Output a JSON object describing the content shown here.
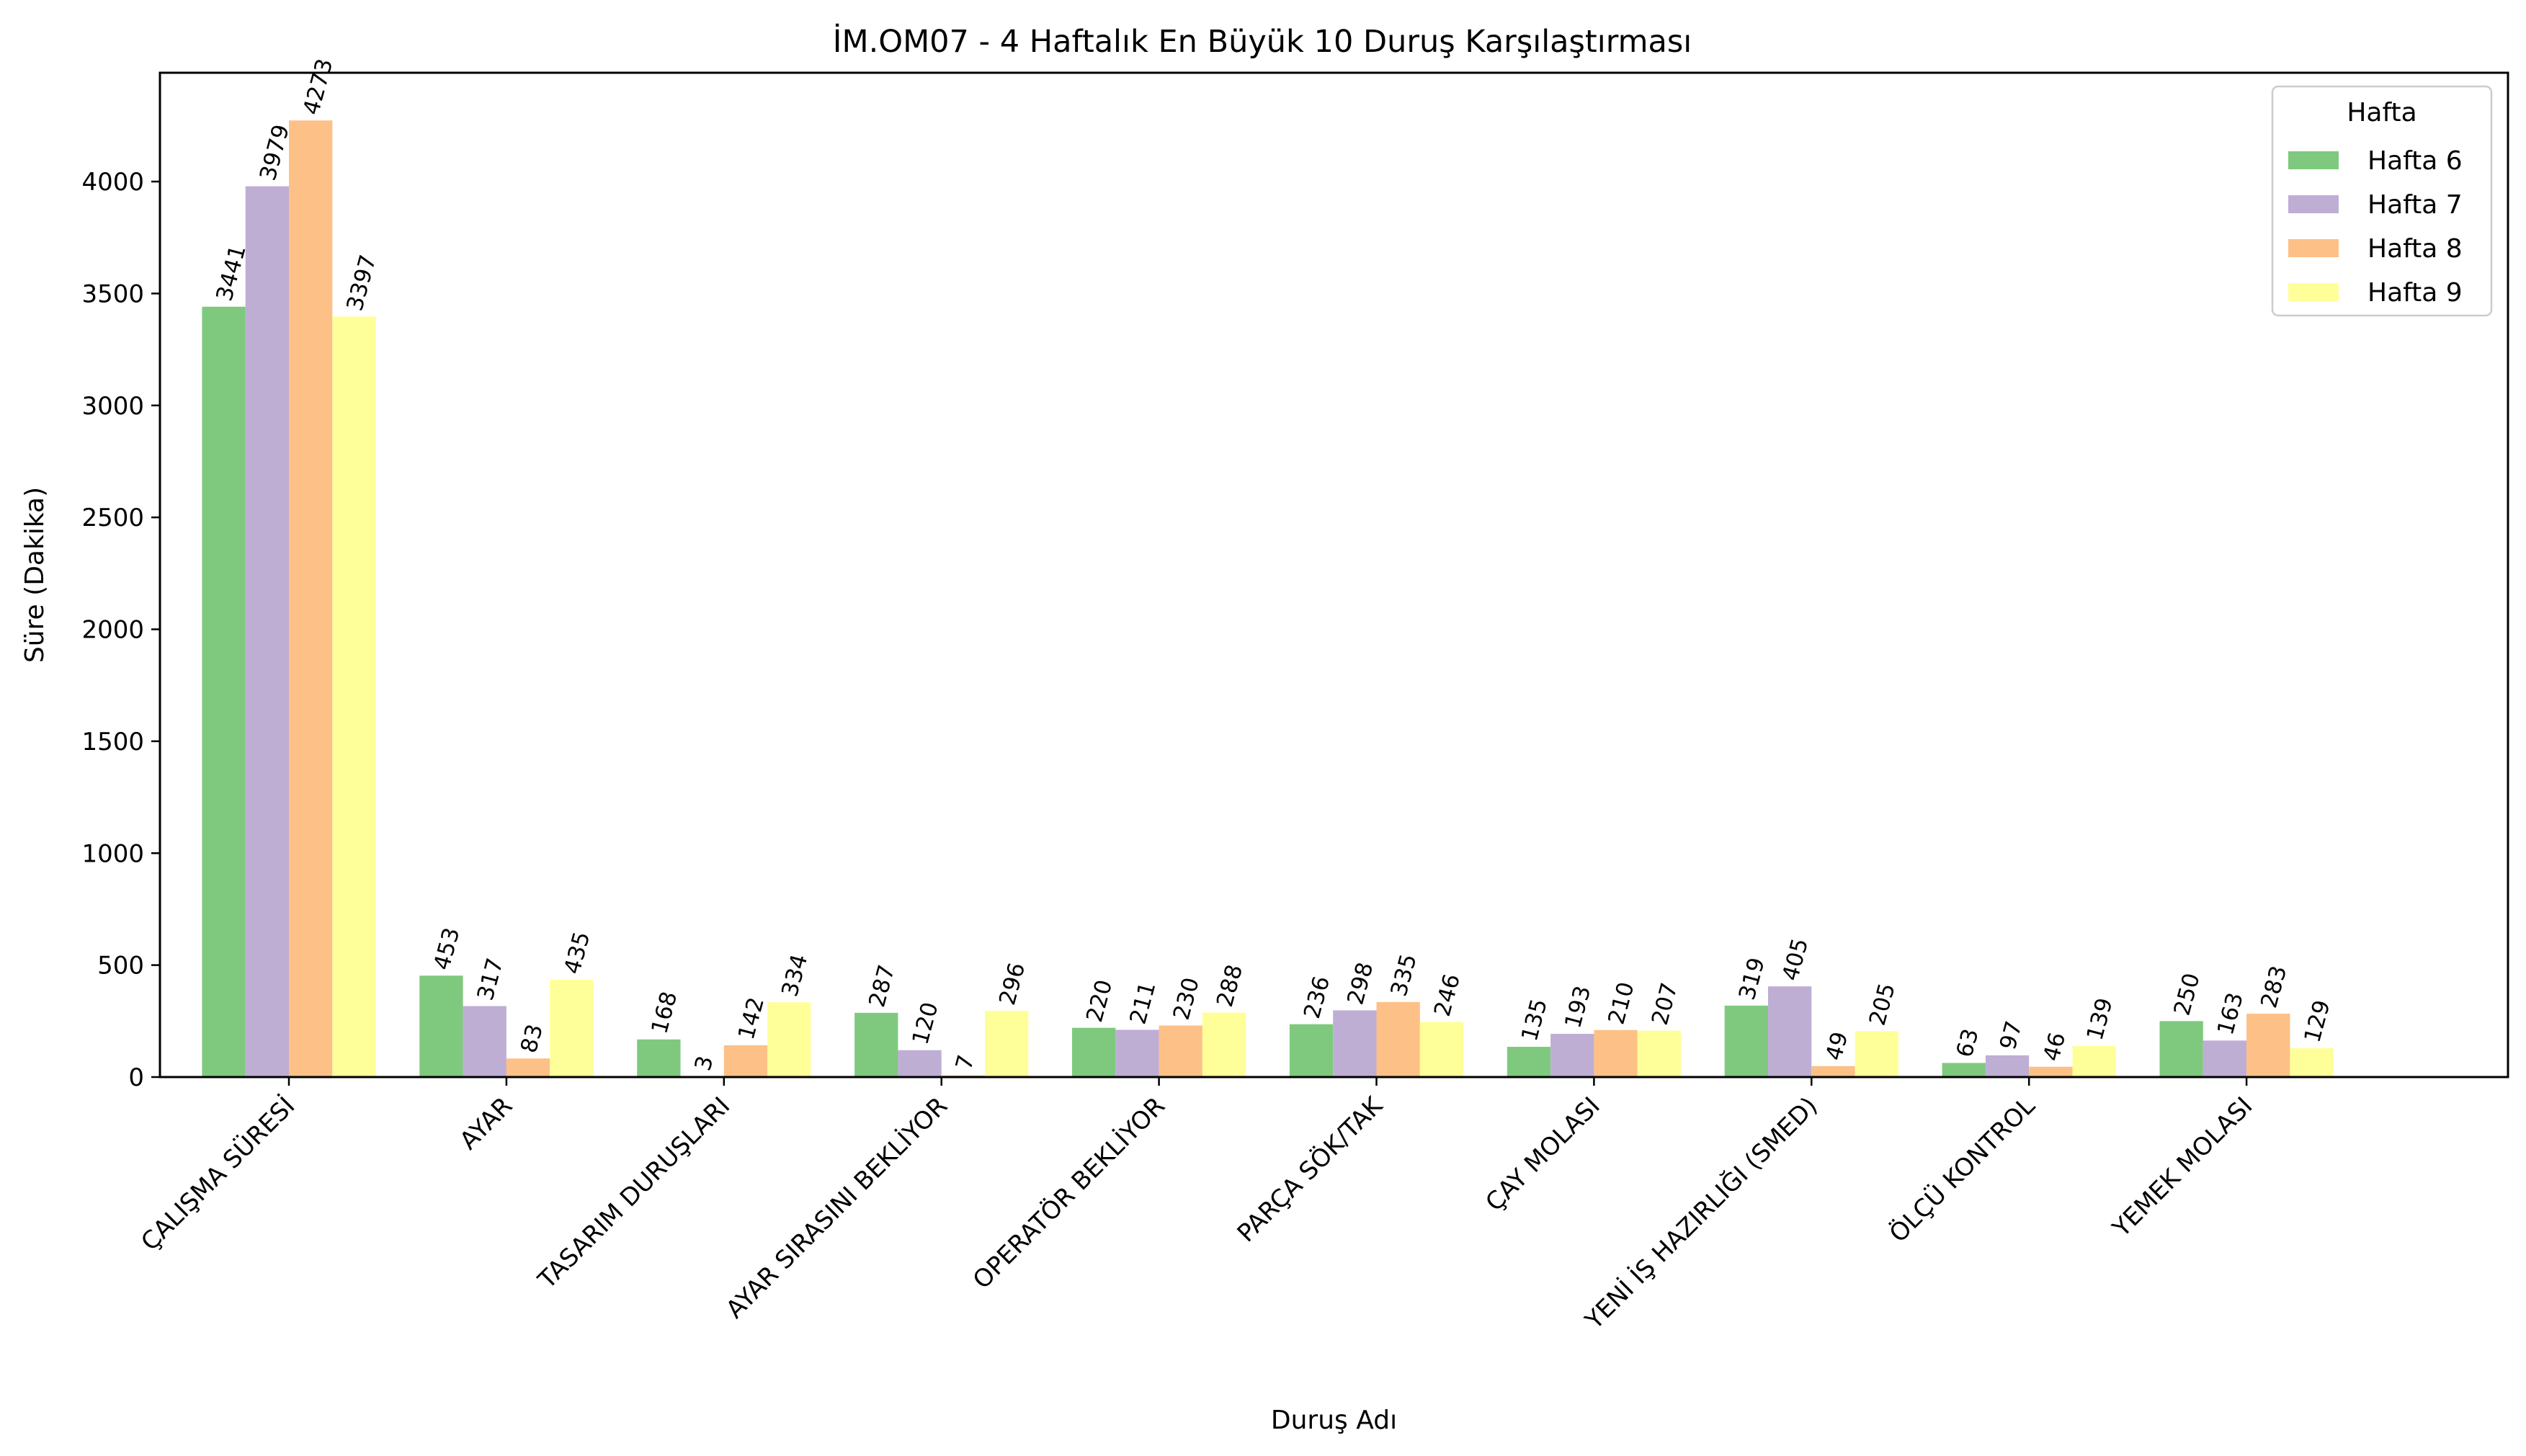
{
  "chart_data": {
    "type": "bar",
    "title": "İM.OM07 - 4 Haftalık En Büyük 10 Duruş Karşılaştırması",
    "xlabel": "Duruş Adı",
    "ylabel": "Süre (Dakika)",
    "ylim": [
      0,
      4486
    ],
    "yticks": [
      0,
      500,
      1000,
      1500,
      2000,
      2500,
      3000,
      3500,
      4000
    ],
    "grid": false,
    "legend": {
      "title": "Hafta",
      "placement": "top-right"
    },
    "categories": [
      "ÇALIŞMA SÜRESİ",
      "AYAR",
      "TASARIM DURUŞLARI",
      "AYAR SIRASINI BEKLİYOR",
      "OPERATÖR BEKLİYOR",
      "PARÇA SÖK/TAK",
      "ÇAY MOLASI",
      "YENİ İŞ HAZIRLIĞI (SMED)",
      "ÖLÇÜ KONTROL",
      "YEMEK MOLASI"
    ],
    "series": [
      {
        "name": "Hafta 6",
        "color": "#7fc97f",
        "values": [
          3441,
          453,
          168,
          287,
          220,
          236,
          135,
          319,
          63,
          250
        ]
      },
      {
        "name": "Hafta 7",
        "color": "#beaed4",
        "values": [
          3979,
          317,
          3,
          120,
          211,
          298,
          193,
          405,
          97,
          163
        ]
      },
      {
        "name": "Hafta 8",
        "color": "#fdc086",
        "values": [
          4273,
          83,
          142,
          7,
          230,
          335,
          210,
          49,
          46,
          283
        ]
      },
      {
        "name": "Hafta 9",
        "color": "#ffff99",
        "values": [
          3397,
          435,
          334,
          296,
          288,
          246,
          207,
          205,
          139,
          129
        ]
      }
    ]
  }
}
